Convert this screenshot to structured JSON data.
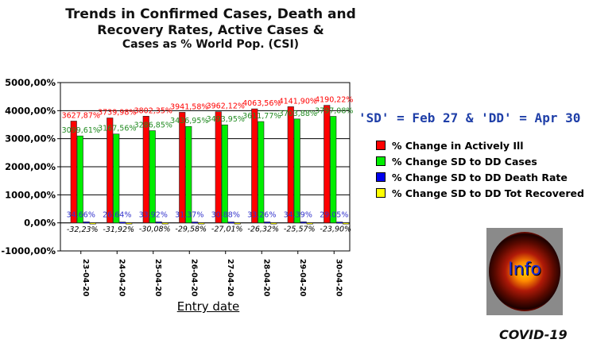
{
  "chart_data": {
    "type": "bar",
    "title": "Trends in Confirmed Cases, Death and Recovery Rates, Active Cases & Cases as % World Pop. (CSI)",
    "title_lines": [
      "Trends in Confirmed Cases, Death and",
      "Recovery Rates, Active Cases &",
      "Cases as % World Pop. (CSI)"
    ],
    "xlabel": "Entry date",
    "ylabel": "",
    "ylim": [
      -1000,
      5000
    ],
    "yticks": [
      "5000,00%",
      "4000,00%",
      "3000,00%",
      "2000,00%",
      "1000,00%",
      "0,00%",
      "-1000,00%"
    ],
    "ytick_values": [
      5000,
      4000,
      3000,
      2000,
      1000,
      0,
      -1000
    ],
    "grid": true,
    "legend_position": "right",
    "categories": [
      "23-04-20",
      "24-04-20",
      "25-04-20",
      "26-04-20",
      "27-04-20",
      "28-04-20",
      "29-04-20",
      "30-04-20"
    ],
    "series": [
      {
        "name": "% Change in Actively Ill",
        "color": "#ff0000",
        "label_color": "#ff0000",
        "values": [
          3627.87,
          3739.98,
          3802.35,
          3941.58,
          3962.12,
          4063.56,
          4141.9,
          4190.22
        ],
        "labels": [
          "3627,87%",
          "3739,98%",
          "3802,35%",
          "3941,58%",
          "3962,12%",
          "4063,56%",
          "4141,90%",
          "4190,22%"
        ]
      },
      {
        "name": "% Change SD to DD Cases",
        "color": "#00ee00",
        "label_color": "#228b22",
        "values": [
          3099.61,
          3167.56,
          3286.85,
          3436.95,
          3493.95,
          3611.77,
          3703.88,
          3797.08
        ],
        "labels": [
          "3099,61%",
          "3167,56%",
          "3286,85%",
          "3436,95%",
          "3493,95%",
          "3611,77%",
          "3703,88%",
          "3797,08%"
        ]
      },
      {
        "name": "% Change SD to DD Death Rate",
        "color": "#0000ee",
        "label_color": "#3333cc",
        "values": [
          34.66,
          26.64,
          33.92,
          31.37,
          30.88,
          33.26,
          34.39,
          29.05
        ],
        "labels": [
          "34,66%",
          "26,64%",
          "33,92%",
          "31,37%",
          "30,88%",
          "33,26%",
          "34,39%",
          "29,05%"
        ]
      },
      {
        "name": "% Change SD to DD Tot Recovered",
        "color": "#ffff00",
        "label_color": "#000000",
        "values": [
          -32.23,
          -31.92,
          -30.08,
          -29.58,
          -27.01,
          -26.32,
          -25.57,
          -23.9
        ],
        "labels": [
          "-32,23%",
          "-31,92%",
          "-30,08%",
          "-29,58%",
          "-27,01%",
          "-26,32%",
          "-25,57%",
          "-23,90%"
        ]
      }
    ]
  },
  "note": "'SD' = Feb 27 & 'DD' = Apr 30",
  "legend": [
    {
      "label": "% Change in Actively Ill",
      "color": "#ff0000"
    },
    {
      "label": "% Change SD to DD Cases",
      "color": "#00ee00"
    },
    {
      "label": "% Change SD to DD Death Rate",
      "color": "#0000ee"
    },
    {
      "label": "% Change SD to DD Tot Recovered",
      "color": "#ffff00"
    }
  ],
  "logo": {
    "text": "Info",
    "caption": "COVID-19"
  }
}
